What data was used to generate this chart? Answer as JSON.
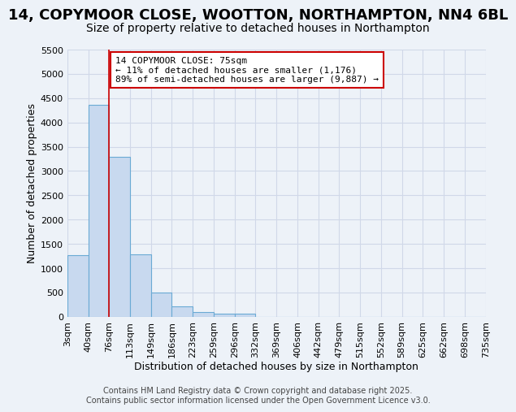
{
  "title1": "14, COPYMOOR CLOSE, WOOTTON, NORTHAMPTON, NN4 6BL",
  "title2": "Size of property relative to detached houses in Northampton",
  "xlabel": "Distribution of detached houses by size in Northampton",
  "ylabel": "Number of detached properties",
  "tick_labels": [
    "3sqm",
    "40sqm",
    "76sqm",
    "113sqm",
    "149sqm",
    "186sqm",
    "223sqm",
    "259sqm",
    "296sqm",
    "332sqm",
    "369sqm",
    "406sqm",
    "442sqm",
    "479sqm",
    "515sqm",
    "552sqm",
    "589sqm",
    "625sqm",
    "662sqm",
    "698sqm",
    "735sqm"
  ],
  "values": [
    1270,
    4370,
    3300,
    1290,
    500,
    210,
    90,
    60,
    60,
    0,
    0,
    0,
    0,
    0,
    0,
    0,
    0,
    0,
    0,
    0
  ],
  "bar_color": "#c8d9ef",
  "bar_edge_color": "#6aaad4",
  "vline_x": 2,
  "vline_color": "#cc0000",
  "ylim": [
    0,
    5500
  ],
  "yticks": [
    0,
    500,
    1000,
    1500,
    2000,
    2500,
    3000,
    3500,
    4000,
    4500,
    5000,
    5500
  ],
  "annotation_text": "14 COPYMOOR CLOSE: 75sqm\n← 11% of detached houses are smaller (1,176)\n89% of semi-detached houses are larger (9,887) →",
  "annotation_box_facecolor": "#ffffff",
  "annotation_box_edgecolor": "#cc0000",
  "footer1": "Contains HM Land Registry data © Crown copyright and database right 2025.",
  "footer2": "Contains public sector information licensed under the Open Government Licence v3.0.",
  "bg_color": "#edf2f8",
  "grid_color": "#d0d8e8",
  "title1_fontsize": 13,
  "title2_fontsize": 10,
  "axis_label_fontsize": 9,
  "tick_fontsize": 8,
  "annotation_fontsize": 8,
  "footer_fontsize": 7
}
